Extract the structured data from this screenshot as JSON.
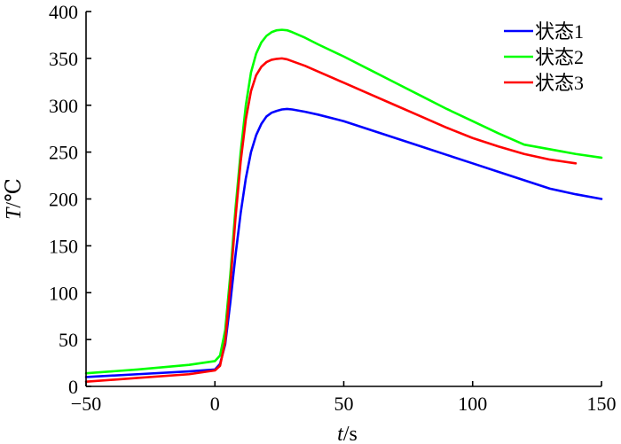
{
  "chart_data": {
    "type": "line",
    "xlabel_var": "t",
    "xlabel_unit": "/s",
    "ylabel_var": "T",
    "ylabel_unit": "/℃",
    "xlim": [
      -50,
      150
    ],
    "ylim": [
      0,
      400
    ],
    "xticks": [
      -50,
      0,
      50,
      100,
      150
    ],
    "yticks": [
      0,
      50,
      100,
      150,
      200,
      250,
      300,
      350,
      400
    ],
    "grid": false,
    "legend_position": "top-right",
    "series": [
      {
        "name": "状态1",
        "color": "#0000ff",
        "x": [
          -50,
          -30,
          -10,
          0,
          2,
          4,
          6,
          8,
          10,
          12,
          14,
          16,
          18,
          20,
          22,
          24,
          26,
          28,
          30,
          35,
          40,
          50,
          60,
          70,
          80,
          90,
          100,
          110,
          120,
          130,
          140,
          150
        ],
        "y": [
          10,
          13,
          16,
          18,
          24,
          45,
          90,
          140,
          185,
          222,
          250,
          268,
          280,
          288,
          292,
          294,
          295.5,
          296,
          295.5,
          293,
          290,
          283,
          274,
          265,
          256,
          247,
          238,
          229,
          220,
          211,
          205,
          200
        ]
      },
      {
        "name": "状态2",
        "color": "#00ff00",
        "x": [
          -50,
          -30,
          -10,
          0,
          2,
          4,
          6,
          8,
          10,
          12,
          14,
          16,
          18,
          20,
          22,
          24,
          26,
          28,
          30,
          35,
          40,
          50,
          60,
          70,
          80,
          90,
          100,
          110,
          120,
          130,
          140,
          150
        ],
        "y": [
          14,
          18,
          23,
          27,
          33,
          60,
          120,
          190,
          250,
          300,
          335,
          355,
          367,
          374,
          378,
          380,
          380.5,
          380,
          378,
          372,
          365,
          352,
          338,
          324,
          310,
          296,
          283,
          270,
          258,
          253,
          248,
          244
        ]
      },
      {
        "name": "状态3",
        "color": "#ff0000",
        "x": [
          -50,
          -30,
          -10,
          0,
          2,
          4,
          6,
          8,
          10,
          12,
          14,
          16,
          18,
          20,
          22,
          24,
          26,
          28,
          30,
          35,
          40,
          50,
          60,
          70,
          80,
          90,
          100,
          110,
          120,
          130,
          140
        ],
        "y": [
          5,
          9,
          13,
          17,
          22,
          48,
          110,
          180,
          240,
          285,
          315,
          332,
          341,
          346,
          348.5,
          349.5,
          350,
          349,
          347,
          342,
          336,
          324,
          312,
          300,
          288,
          276,
          265,
          256,
          248,
          242,
          238
        ]
      }
    ]
  }
}
